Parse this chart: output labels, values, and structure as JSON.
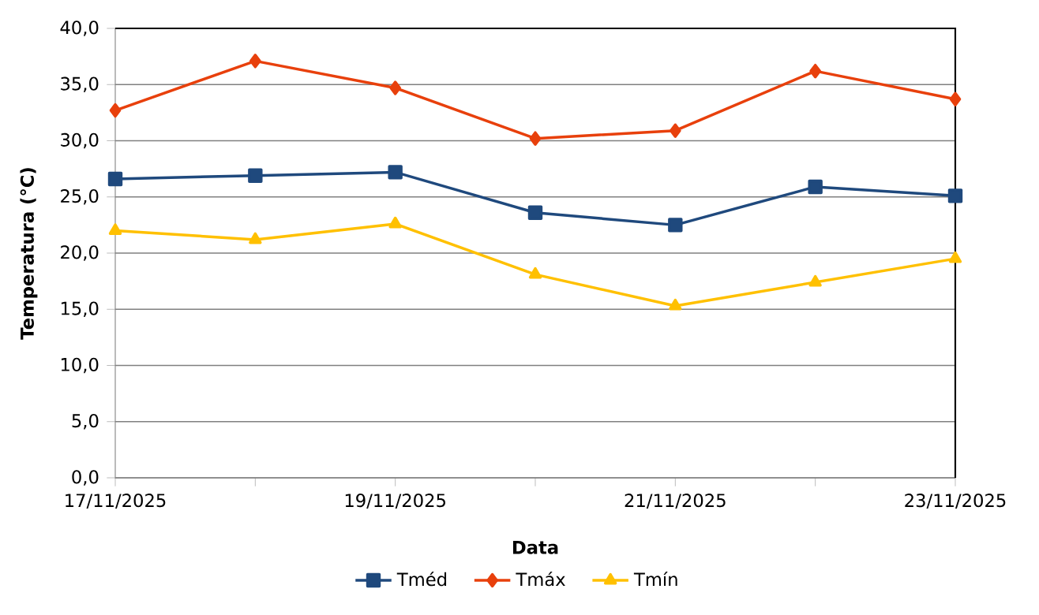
{
  "chart_data": {
    "type": "line",
    "xlabel": "Data",
    "ylabel": "Temperatura (°C)",
    "x": [
      "2025-11-17",
      "2025-11-18",
      "2025-11-19",
      "2025-11-20",
      "2025-11-21",
      "2025-11-22",
      "2025-11-23"
    ],
    "series": [
      {
        "name": "Tméd",
        "color": "#1f497d",
        "marker": "square",
        "values": [
          26.6,
          26.9,
          27.2,
          23.6,
          22.5,
          25.9,
          25.1
        ]
      },
      {
        "name": "Tmáx",
        "color": "#e8400c",
        "marker": "diamond",
        "values": [
          32.7,
          37.1,
          34.7,
          30.2,
          30.9,
          36.2,
          33.7
        ]
      },
      {
        "name": "Tmín",
        "color": "#ffc000",
        "marker": "triangle",
        "values": [
          22.0,
          21.2,
          22.6,
          18.1,
          15.3,
          17.4,
          19.5
        ]
      }
    ],
    "xlim": [
      "2025-11-17",
      "2025-11-23"
    ],
    "xticks": [
      {
        "value": "2025-11-17",
        "label": "17/11/2025"
      },
      {
        "value": "2025-11-18",
        "label": null
      },
      {
        "value": "2025-11-19",
        "label": "19/11/2025"
      },
      {
        "value": "2025-11-20",
        "label": null
      },
      {
        "value": "2025-11-21",
        "label": "21/11/2025"
      },
      {
        "value": "2025-11-22",
        "label": null
      },
      {
        "value": "2025-11-23",
        "label": "23/11/2025"
      }
    ],
    "ylim": [
      0,
      40
    ],
    "yticks": [
      {
        "value": 0,
        "label": "0,0"
      },
      {
        "value": 5,
        "label": "5,0"
      },
      {
        "value": 10,
        "label": "10,0"
      },
      {
        "value": 15,
        "label": "15,0"
      },
      {
        "value": 20,
        "label": "20,0"
      },
      {
        "value": 25,
        "label": "25,0"
      },
      {
        "value": 30,
        "label": "30,0"
      },
      {
        "value": 35,
        "label": "35,0"
      },
      {
        "value": 40,
        "label": "40,0"
      }
    ],
    "grid": "y",
    "legend": "bottom"
  }
}
